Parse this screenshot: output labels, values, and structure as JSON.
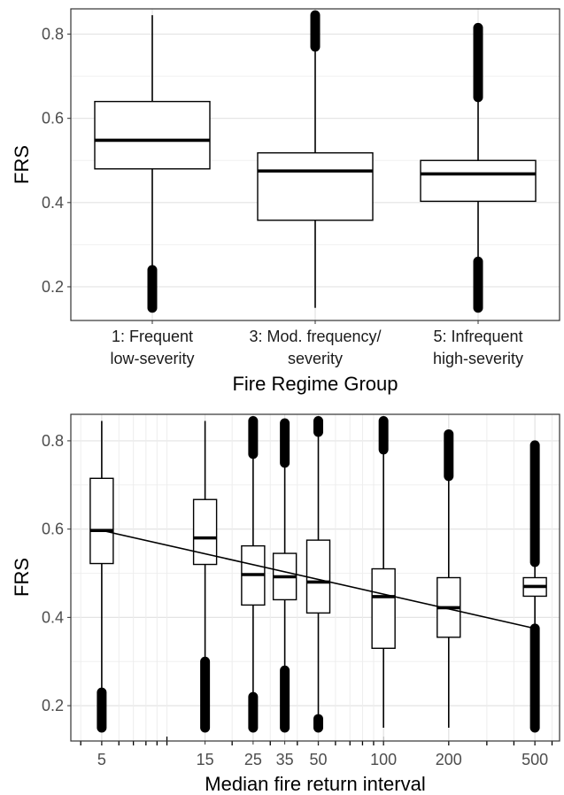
{
  "chart_data": [
    {
      "type": "box",
      "ylabel": "FRS",
      "xlabel": "Fire Regime Group",
      "ylim": [
        0.12,
        0.86
      ],
      "yticks": [
        0.2,
        0.4,
        0.6,
        0.8
      ],
      "ytick_labels": [
        "0.2",
        "0.4",
        "0.6",
        "0.8"
      ],
      "grid": true,
      "categories": [
        [
          "1: Frequent",
          "low-severity"
        ],
        [
          "3: Mod. frequency/",
          "severity"
        ],
        [
          "5: Infrequent",
          "high-severity"
        ]
      ],
      "boxes": [
        {
          "whisker_low": 0.24,
          "q1": 0.48,
          "median": 0.548,
          "q3": 0.64,
          "whisker_high": 0.845,
          "outliers_low": [
            0.15,
            0.24
          ],
          "outliers_high": null
        },
        {
          "whisker_low": 0.15,
          "q1": 0.358,
          "median": 0.475,
          "q3": 0.518,
          "whisker_high": 0.77,
          "outliers_low": null,
          "outliers_high": [
            0.77,
            0.845
          ]
        },
        {
          "whisker_low": 0.26,
          "q1": 0.403,
          "median": 0.468,
          "q3": 0.5,
          "whisker_high": 0.65,
          "outliers_low": [
            0.15,
            0.26
          ],
          "outliers_high": [
            0.65,
            0.815
          ]
        }
      ]
    },
    {
      "type": "box",
      "ylabel": "FRS",
      "xlabel": "Median fire return interval",
      "x_scale": "log",
      "xlim": [
        3.6,
        650
      ],
      "ylim": [
        0.12,
        0.86
      ],
      "yticks": [
        0.2,
        0.4,
        0.6,
        0.8
      ],
      "ytick_labels": [
        "0.2",
        "0.4",
        "0.6",
        "0.8"
      ],
      "xticks": [
        5,
        15,
        25,
        35,
        50,
        100,
        200,
        500
      ],
      "xtick_labels": [
        "5",
        "15",
        "25",
        "35",
        "50",
        "100",
        "200",
        "500"
      ],
      "grid": true,
      "boxes": [
        {
          "x": 5,
          "whisker_low": 0.23,
          "q1": 0.522,
          "median": 0.597,
          "q3": 0.715,
          "whisker_high": 0.845,
          "outliers_low": [
            0.15,
            0.23
          ],
          "outliers_high": null
        },
        {
          "x": 15,
          "whisker_low": 0.3,
          "q1": 0.52,
          "median": 0.58,
          "q3": 0.667,
          "whisker_high": 0.845,
          "outliers_low": [
            0.15,
            0.3
          ],
          "outliers_high": null
        },
        {
          "x": 25,
          "whisker_low": 0.22,
          "q1": 0.428,
          "median": 0.497,
          "q3": 0.562,
          "whisker_high": 0.77,
          "outliers_low": [
            0.15,
            0.22
          ],
          "outliers_high": [
            0.77,
            0.845
          ]
        },
        {
          "x": 35,
          "whisker_low": 0.28,
          "q1": 0.44,
          "median": 0.492,
          "q3": 0.545,
          "whisker_high": 0.75,
          "outliers_low": [
            0.15,
            0.28
          ],
          "outliers_high": [
            0.75,
            0.84
          ]
        },
        {
          "x": 50,
          "whisker_low": 0.17,
          "q1": 0.41,
          "median": 0.48,
          "q3": 0.575,
          "whisker_high": 0.82,
          "outliers_low": [
            0.15,
            0.17
          ],
          "outliers_high": [
            0.82,
            0.845
          ]
        },
        {
          "x": 100,
          "whisker_low": 0.15,
          "q1": 0.33,
          "median": 0.447,
          "q3": 0.51,
          "whisker_high": 0.78,
          "outliers_low": null,
          "outliers_high": [
            0.78,
            0.845
          ]
        },
        {
          "x": 200,
          "whisker_low": 0.15,
          "q1": 0.355,
          "median": 0.422,
          "q3": 0.49,
          "whisker_high": 0.72,
          "outliers_low": null,
          "outliers_high": [
            0.72,
            0.815
          ]
        },
        {
          "x": 500,
          "whisker_low": 0.375,
          "q1": 0.448,
          "median": 0.47,
          "q3": 0.49,
          "whisker_high": 0.525,
          "outliers_low": [
            0.15,
            0.375
          ],
          "outliers_high": [
            0.525,
            0.79
          ]
        }
      ],
      "trend_line": {
        "x": [
          5,
          500
        ],
        "y": [
          0.597,
          0.375
        ]
      }
    }
  ]
}
